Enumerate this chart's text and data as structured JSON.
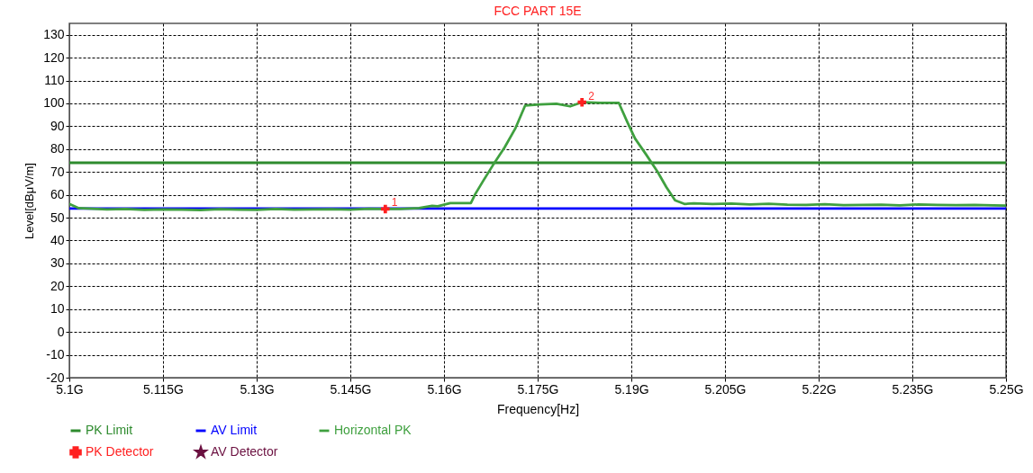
{
  "chart_data": {
    "type": "line",
    "title": "FCC  PART 15E",
    "xlabel": "Frequency[Hz]",
    "ylabel": "Level[dBμV/m]",
    "xlim": [
      5.1,
      5.25
    ],
    "xticks": [
      {
        "value": 5.1,
        "label": "5.1G"
      },
      {
        "value": 5.115,
        "label": "5.115G"
      },
      {
        "value": 5.13,
        "label": "5.13G"
      },
      {
        "value": 5.145,
        "label": "5.145G"
      },
      {
        "value": 5.16,
        "label": "5.16G"
      },
      {
        "value": 5.175,
        "label": "5.175G"
      },
      {
        "value": 5.19,
        "label": "5.19G"
      },
      {
        "value": 5.205,
        "label": "5.205G"
      },
      {
        "value": 5.22,
        "label": "5.22G"
      },
      {
        "value": 5.235,
        "label": "5.235G"
      },
      {
        "value": 5.25,
        "label": "5.25G"
      }
    ],
    "ylim": [
      -20,
      135
    ],
    "yticks": [
      -20,
      -10,
      0,
      10,
      20,
      30,
      40,
      50,
      60,
      70,
      80,
      90,
      100,
      110,
      120,
      130
    ],
    "grid": true,
    "legend": "bottom",
    "line_style": "solid",
    "marker": "none",
    "series": [
      {
        "name": "PK Limit",
        "type": "line",
        "color": "#2e8b2e",
        "x": [
          5.1,
          5.25
        ],
        "values": [
          74,
          74
        ]
      },
      {
        "name": "AV Limit",
        "type": "line",
        "color": "#0000ff",
        "x": [
          5.1,
          5.25
        ],
        "values": [
          54,
          54
        ]
      },
      {
        "name": "Horizontal PK",
        "type": "line",
        "color": "#3fa03f",
        "x": [
          5.1,
          5.1015,
          5.103,
          5.106,
          5.109,
          5.112,
          5.115,
          5.118,
          5.121,
          5.124,
          5.127,
          5.13,
          5.133,
          5.136,
          5.139,
          5.142,
          5.145,
          5.148,
          5.1506,
          5.153,
          5.156,
          5.1581,
          5.159,
          5.161,
          5.1643,
          5.165,
          5.1663,
          5.1678,
          5.1697,
          5.1714,
          5.173,
          5.1754,
          5.178,
          5.1802,
          5.1821,
          5.185,
          5.188,
          5.1894,
          5.1906,
          5.1923,
          5.1942,
          5.1956,
          5.197,
          5.1985,
          5.2,
          5.203,
          5.206,
          5.209,
          5.212,
          5.215,
          5.218,
          5.221,
          5.224,
          5.227,
          5.23,
          5.233,
          5.236,
          5.239,
          5.242,
          5.245,
          5.248,
          5.25
        ],
        "values": [
          56,
          54.2,
          54,
          53.6,
          53.8,
          53.4,
          53.6,
          53.5,
          53.3,
          53.7,
          53.5,
          53.4,
          53.8,
          53.5,
          53.6,
          53.7,
          53.5,
          53.9,
          53.8,
          53.8,
          54.2,
          55.2,
          55,
          56.4,
          56.4,
          60.3,
          66.2,
          72.8,
          80.7,
          88.9,
          99.1,
          99.5,
          99.8,
          98.7,
          100.5,
          100.2,
          100.2,
          91.6,
          84.6,
          77.9,
          70.1,
          63.4,
          57.6,
          56,
          56.3,
          56,
          56.2,
          55.8,
          56.1,
          55.7,
          55.6,
          55.9,
          55.5,
          55.6,
          55.7,
          55.4,
          55.8,
          55.6,
          55.5,
          55.6,
          55.4,
          55.3
        ]
      },
      {
        "name": "PK Detector",
        "type": "scatter",
        "marker": "cross",
        "color": "#ff2020",
        "x": [
          5.1506,
          5.1821
        ],
        "values": [
          53.8,
          100.5
        ]
      },
      {
        "name": "AV Detector",
        "type": "scatter",
        "marker": "star",
        "color": "#6b1040"
      }
    ],
    "annotations": [
      {
        "text": "1",
        "x": 5.1506,
        "y": 53.8
      },
      {
        "text": "2",
        "x": 5.1821,
        "y": 100.5
      }
    ]
  }
}
